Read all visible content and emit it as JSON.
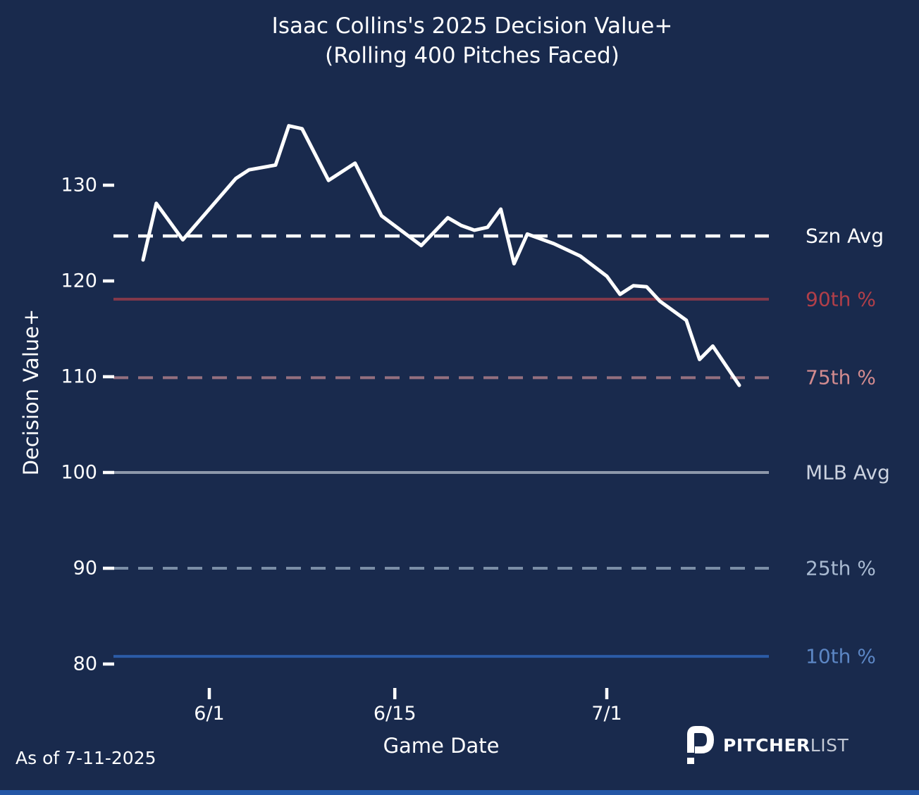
{
  "title": {
    "line1": "Isaac Collins's 2025 Decision Value+",
    "line2": "(Rolling 400 Pitches Faced)"
  },
  "footer": {
    "as_of": "As of 7-11-2025"
  },
  "brand": {
    "icon": "pitcherlist-p-icon",
    "name_bold": "PITCHER",
    "name_light": "LIST"
  },
  "colors": {
    "background": "#192a4d",
    "series_line": "#ffffff",
    "tick": "#ffffff",
    "bottom_bar": "#2456a5"
  },
  "chart_data": {
    "type": "line",
    "title": "Isaac Collins's 2025 Decision Value+",
    "subtitle": "(Rolling 400 Pitches Faced)",
    "xlabel": "Game Date",
    "ylabel": "Decision Value+",
    "grid": false,
    "legend_position": "right-margin-labels",
    "ylim": [
      77,
      139
    ],
    "y_ticks": [
      130,
      120,
      110,
      100,
      90,
      80
    ],
    "x_ticks": [
      {
        "label": "6/1",
        "day": 0
      },
      {
        "label": "6/15",
        "day": 14
      },
      {
        "label": "7/1",
        "day": 30
      }
    ],
    "series": [
      {
        "name": "Rolling 400-pitch Decision Value+",
        "color": "#ffffff",
        "points": [
          {
            "date": "5/27",
            "day": -5,
            "value": 122.2
          },
          {
            "date": "5/28",
            "day": -4,
            "value": 128.1
          },
          {
            "date": "5/30",
            "day": -2,
            "value": 124.3
          },
          {
            "date": "6/3",
            "day": 2,
            "value": 130.7
          },
          {
            "date": "6/4",
            "day": 3,
            "value": 131.6
          },
          {
            "date": "6/6",
            "day": 5,
            "value": 132.1
          },
          {
            "date": "6/7",
            "day": 6,
            "value": 136.2
          },
          {
            "date": "6/8",
            "day": 7,
            "value": 135.9
          },
          {
            "date": "6/10",
            "day": 9,
            "value": 130.5
          },
          {
            "date": "6/12",
            "day": 11,
            "value": 132.3
          },
          {
            "date": "6/14",
            "day": 13,
            "value": 126.8
          },
          {
            "date": "6/17",
            "day": 16,
            "value": 123.7
          },
          {
            "date": "6/19",
            "day": 18,
            "value": 126.6
          },
          {
            "date": "6/20",
            "day": 19,
            "value": 125.8
          },
          {
            "date": "6/21",
            "day": 20,
            "value": 125.3
          },
          {
            "date": "6/22",
            "day": 21,
            "value": 125.6
          },
          {
            "date": "6/23",
            "day": 22,
            "value": 127.5
          },
          {
            "date": "6/24",
            "day": 23,
            "value": 121.8
          },
          {
            "date": "6/25",
            "day": 24,
            "value": 124.9
          },
          {
            "date": "6/27",
            "day": 26,
            "value": 123.9
          },
          {
            "date": "6/29",
            "day": 28,
            "value": 122.6
          },
          {
            "date": "7/1",
            "day": 30,
            "value": 120.5
          },
          {
            "date": "7/2",
            "day": 31,
            "value": 118.6
          },
          {
            "date": "7/3",
            "day": 32,
            "value": 119.5
          },
          {
            "date": "7/4",
            "day": 33,
            "value": 119.4
          },
          {
            "date": "7/5",
            "day": 34,
            "value": 117.9
          },
          {
            "date": "7/7",
            "day": 36,
            "value": 115.9
          },
          {
            "date": "7/8",
            "day": 37,
            "value": 111.8
          },
          {
            "date": "7/9",
            "day": 38,
            "value": 113.2
          },
          {
            "date": "7/11",
            "day": 40,
            "value": 109.1
          }
        ]
      }
    ],
    "reference_lines": [
      {
        "id": "szn_avg",
        "label": "Szn Avg",
        "value": 124.7,
        "style": "dashed",
        "line_color": "#ffffff",
        "label_color": "#ffffff",
        "width": 4.5
      },
      {
        "id": "p90",
        "label": "90th %",
        "value": 118.1,
        "style": "solid",
        "line_color": "#84394a",
        "label_color": "#b13f49",
        "width": 4
      },
      {
        "id": "p75",
        "label": "75th %",
        "value": 109.9,
        "style": "dashed",
        "line_color": "#95707f",
        "label_color": "#d28b8f",
        "width": 4
      },
      {
        "id": "mlb_avg",
        "label": "MLB Avg",
        "value": 100.0,
        "style": "solid",
        "line_color": "#8d98aa",
        "label_color": "#ccd3e0",
        "width": 4
      },
      {
        "id": "p25",
        "label": "25th %",
        "value": 90.0,
        "style": "dashed",
        "line_color": "#7b8ea6",
        "label_color": "#a9bad1",
        "width": 4
      },
      {
        "id": "p10",
        "label": "10th %",
        "value": 80.8,
        "style": "solid",
        "line_color": "#2b5ba6",
        "label_color": "#5c86c4",
        "width": 4
      }
    ]
  }
}
